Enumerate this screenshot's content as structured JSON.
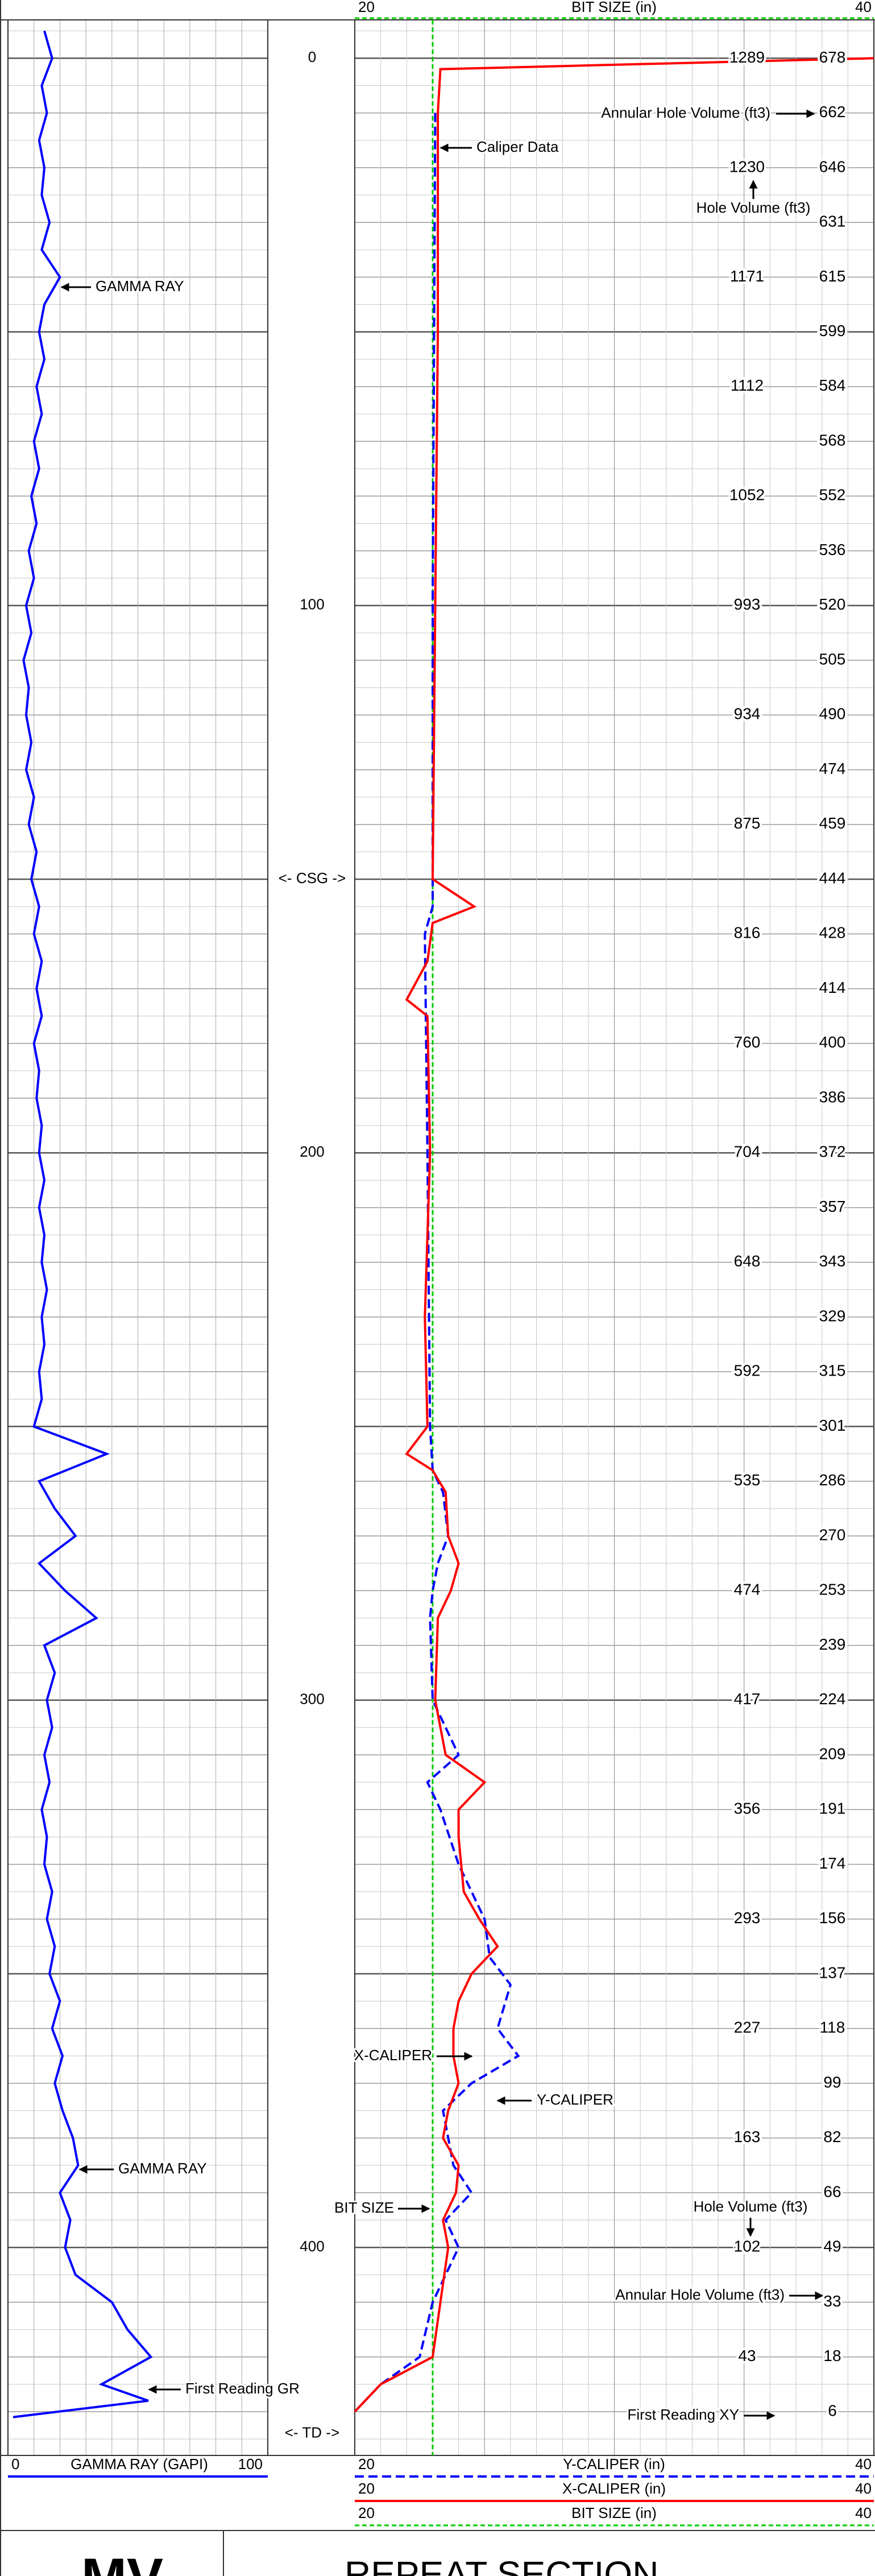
{
  "header": {
    "bit_size_label": "BIT SIZE (in)"
  },
  "depth_lim": [
    -7,
    438
  ],
  "depth_ticks": [
    0,
    100,
    200,
    300,
    400
  ],
  "depth_markers": [
    {
      "depth": 150,
      "label": "<- CSG ->"
    },
    {
      "depth": 434,
      "label": "<- TD ->"
    }
  ],
  "gamma_lim": [
    0,
    100
  ],
  "gamma_label": "GAMMA RAY (GAPI)",
  "caliper_lim": [
    20,
    40
  ],
  "curves": {
    "gamma": {
      "color": "#0000ff",
      "depths": [
        -5,
        0,
        5,
        10,
        15,
        20,
        25,
        30,
        35,
        40,
        45,
        50,
        55,
        60,
        65,
        70,
        75,
        80,
        85,
        90,
        95,
        100,
        105,
        110,
        115,
        120,
        125,
        130,
        135,
        140,
        145,
        150,
        155,
        160,
        165,
        170,
        175,
        180,
        185,
        190,
        195,
        200,
        205,
        210,
        215,
        220,
        225,
        230,
        235,
        240,
        245,
        250,
        255,
        260,
        265,
        270,
        275,
        280,
        285,
        290,
        295,
        300,
        305,
        310,
        315,
        320,
        325,
        330,
        335,
        340,
        345,
        350,
        355,
        360,
        365,
        370,
        375,
        380,
        385,
        390,
        395,
        400,
        405,
        410,
        415,
        420,
        425,
        428,
        431
      ],
      "values": [
        14,
        17,
        13,
        15,
        12,
        14,
        13,
        16,
        13,
        20,
        14,
        12,
        14,
        11,
        13,
        10,
        12,
        9,
        11,
        8,
        10,
        7,
        9,
        6,
        8,
        7,
        9,
        7,
        10,
        8,
        11,
        9,
        12,
        10,
        13,
        11,
        13,
        10,
        12,
        11,
        13,
        12,
        14,
        12,
        14,
        13,
        15,
        13,
        14,
        12,
        13,
        10,
        38,
        12,
        18,
        26,
        12,
        22,
        34,
        14,
        18,
        15,
        17,
        14,
        16,
        13,
        15,
        14,
        17,
        15,
        18,
        16,
        20,
        17,
        21,
        18,
        21,
        25,
        27,
        20,
        24,
        22,
        26,
        40,
        46,
        55,
        36,
        54,
        2
      ]
    },
    "x_caliper": {
      "name": "X-CALIPER (in)",
      "color": "#ff0000",
      "depths": [
        0,
        2,
        10,
        50,
        100,
        150,
        155,
        158,
        165,
        172,
        175,
        200,
        230,
        250,
        255,
        258,
        262,
        270,
        275,
        280,
        285,
        300,
        310,
        315,
        320,
        325,
        335,
        340,
        345,
        350,
        355,
        360,
        365,
        370,
        375,
        380,
        385,
        390,
        395,
        400,
        410,
        420,
        425,
        430
      ],
      "values": [
        40,
        23.3,
        23.2,
        23.2,
        23.1,
        23.0,
        24.6,
        23.0,
        22.8,
        22.0,
        22.8,
        22.9,
        22.7,
        22.8,
        22.0,
        23.0,
        23.5,
        23.6,
        24.0,
        23.7,
        23.2,
        23.1,
        23.5,
        25.0,
        24.0,
        24.0,
        24.2,
        24.8,
        25.5,
        24.5,
        24.0,
        23.8,
        23.8,
        24.0,
        23.6,
        23.4,
        24.0,
        23.9,
        23.4,
        23.6,
        23.3,
        23.0,
        21.0,
        20.0
      ]
    },
    "y_caliper": {
      "name": "Y-CALIPER (in)",
      "color": "#0000ff",
      "depths": [
        10,
        100,
        150,
        155,
        160,
        200,
        250,
        258,
        262,
        270,
        275,
        280,
        285,
        300,
        310,
        315,
        320,
        330,
        340,
        347,
        352,
        360,
        365,
        370,
        375,
        385,
        390,
        395,
        400,
        410,
        420,
        425,
        430
      ],
      "values": [
        23.1,
        23.0,
        23.0,
        23.0,
        22.7,
        22.8,
        22.9,
        23.0,
        23.4,
        23.6,
        23.2,
        23.0,
        22.9,
        23.0,
        24.0,
        22.8,
        23.3,
        24.0,
        25.0,
        25.2,
        26.0,
        25.5,
        26.3,
        24.5,
        23.4,
        23.8,
        24.5,
        23.5,
        24.0,
        23.0,
        22.5,
        21.0,
        20.0
      ]
    },
    "bit_size": {
      "color": "#00cc00",
      "value": 23
    }
  },
  "volumes": {
    "hole": {
      "depths": [
        0,
        20,
        40,
        60,
        80,
        100,
        120,
        140,
        160,
        180,
        200,
        220,
        240,
        260,
        280,
        300,
        320,
        340,
        360,
        380,
        400,
        420
      ],
      "values": [
        1289,
        1230,
        1171,
        1112,
        1052,
        993,
        934,
        875,
        816,
        760,
        704,
        648,
        592,
        535,
        474,
        417,
        356,
        293,
        227,
        163,
        102,
        43
      ]
    },
    "annular": {
      "depths": [
        0,
        10,
        20,
        30,
        40,
        50,
        60,
        70,
        80,
        90,
        100,
        110,
        120,
        130,
        140,
        150,
        160,
        170,
        180,
        190,
        200,
        210,
        220,
        230,
        240,
        250,
        260,
        270,
        280,
        290,
        300,
        310,
        320,
        330,
        340,
        350,
        360,
        370,
        380,
        390,
        400,
        410,
        420,
        430
      ],
      "values": [
        678,
        662,
        646,
        631,
        615,
        599,
        584,
        568,
        552,
        536,
        520,
        505,
        490,
        474,
        459,
        444,
        428,
        414,
        400,
        386,
        372,
        357,
        343,
        329,
        315,
        301,
        286,
        270,
        253,
        239,
        224,
        209,
        191,
        174,
        156,
        137,
        118,
        99,
        82,
        66,
        49,
        33,
        18,
        6
      ]
    }
  },
  "annotations": {
    "caliper_data": "Caliper Data",
    "annular_top": "Annular Hole Volume (ft3)",
    "hole_top": "Hole Volume (ft3)",
    "gamma_top": "GAMMA RAY",
    "x_caliper": "X-CALIPER",
    "y_caliper": "Y-CALIPER",
    "gamma_bottom": "GAMMA RAY",
    "bit_size": "BIT SIZE",
    "hole_bottom": "Hole Volume (ft3)",
    "annular_bottom": "Annular Hole Volume (ft3)",
    "first_gr": "First Reading GR",
    "first_xy": "First Reading XY"
  },
  "footer": {
    "logo": "MV",
    "title": "REPEAT SECTION"
  }
}
